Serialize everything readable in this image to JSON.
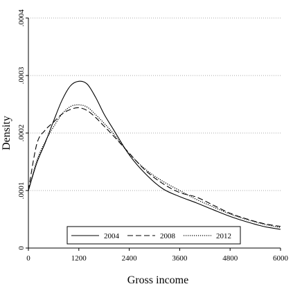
{
  "chart_data": {
    "type": "line",
    "title": "",
    "xlabel": "Gross income",
    "ylabel": "Density",
    "xlim": [
      0,
      6000
    ],
    "ylim": [
      0,
      0.0004
    ],
    "x_ticks": [
      0,
      1200,
      2400,
      3600,
      4800,
      6000
    ],
    "x_tick_labels": [
      "0",
      "1200",
      "2400",
      "3600",
      "4800",
      "6000"
    ],
    "y_ticks": [
      0,
      0.0001,
      0.0002,
      0.0003,
      0.0004
    ],
    "y_tick_labels": [
      "0",
      ".0001",
      ".0002",
      ".0003",
      ".0004"
    ],
    "grid": "horizontal dotted",
    "legend_position": "bottom",
    "series": [
      {
        "name": "2004",
        "style": "solid",
        "color": "#000000",
        "x": [
          0,
          200,
          400,
          600,
          800,
          1000,
          1200,
          1400,
          1600,
          1800,
          2000,
          2400,
          2800,
          3200,
          3600,
          4000,
          4400,
          4800,
          5200,
          5600,
          6000
        ],
        "y": [
          0.0001,
          0.000148,
          0.000183,
          0.000221,
          0.000257,
          0.000282,
          0.00029,
          0.000285,
          0.000262,
          0.000233,
          0.000209,
          0.000162,
          0.000128,
          0.000103,
          8.95e-05,
          7.85e-05,
          6.65e-05,
          5.5e-05,
          4.55e-05,
          3.75e-05,
          3.25e-05
        ]
      },
      {
        "name": "2008",
        "style": "dashed",
        "color": "#000000",
        "x": [
          0,
          200,
          400,
          600,
          800,
          1000,
          1200,
          1400,
          1600,
          1800,
          2000,
          2400,
          2800,
          3200,
          3600,
          4000,
          4400,
          4800,
          5200,
          5600,
          6000
        ],
        "y": [
          0.0001,
          0.000181,
          0.000205,
          0.000219,
          0.000233,
          0.000241,
          0.000244,
          0.000239,
          0.000227,
          0.000212,
          0.000197,
          0.000165,
          0.000134,
          0.000112,
          9.65e-05,
          8.85e-05,
          7.45e-05,
          6.05e-05,
          5.05e-05,
          4.25e-05,
          3.75e-05
        ]
      },
      {
        "name": "2012",
        "style": "dotted",
        "color": "#000000",
        "x": [
          0,
          200,
          400,
          600,
          800,
          1000,
          1200,
          1400,
          1600,
          1800,
          2000,
          2400,
          2800,
          3200,
          3600,
          4000,
          4400,
          4800,
          5200,
          5600,
          6000
        ],
        "y": [
          0.0001,
          0.000152,
          0.000185,
          0.000211,
          0.000233,
          0.000246,
          0.000249,
          0.000245,
          0.000232,
          0.000217,
          0.000201,
          0.000164,
          0.000136,
          0.000116,
          0.0001,
          8.45e-05,
          7.15e-05,
          5.9e-05,
          4.95e-05,
          4.15e-05,
          3.55e-05
        ]
      }
    ]
  }
}
